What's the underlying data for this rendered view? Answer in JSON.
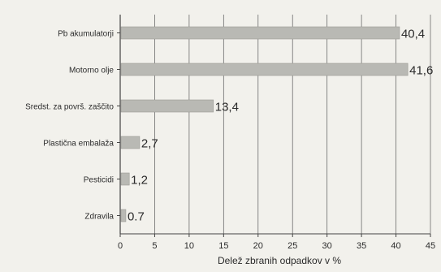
{
  "chart_data": {
    "type": "bar",
    "orientation": "horizontal",
    "categories": [
      "Pb akumulatorji",
      "Motorno olje",
      "Sredst. za površ. zaščito",
      "Plastična embalaža",
      "Pesticidi",
      "Zdravila"
    ],
    "values": [
      40.4,
      41.6,
      13.4,
      2.7,
      1.2,
      0.7
    ],
    "value_labels": [
      "40,4",
      "41,6",
      "13,4",
      "2,7",
      "1,2",
      "0.7"
    ],
    "xlabel": "Delež zbranih odpadkov v %",
    "ylabel": "",
    "title": "",
    "xlim": [
      0,
      45
    ],
    "xticks": [
      0,
      5,
      10,
      15,
      20,
      25,
      30,
      35,
      40,
      45
    ],
    "grid": "vertical",
    "bar_color": "#b9b9b4"
  }
}
